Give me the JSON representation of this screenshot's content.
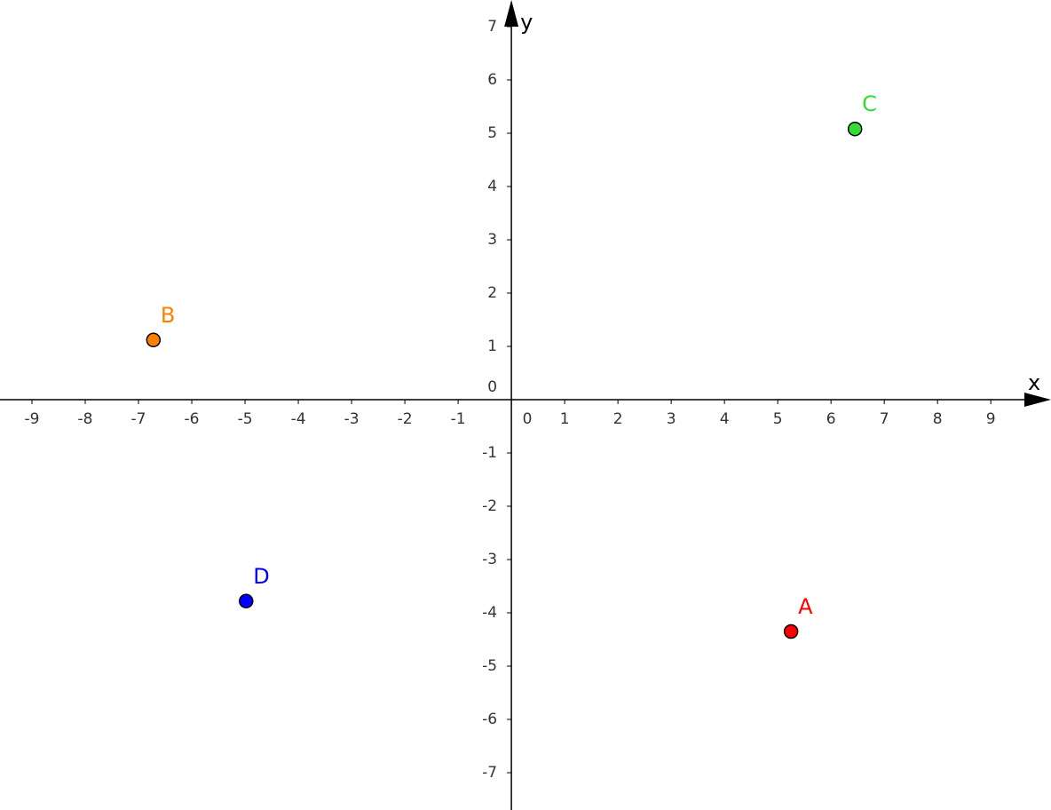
{
  "chart_data": {
    "type": "scatter",
    "xlabel": "x",
    "ylabel": "y",
    "xlim": [
      -9.6,
      10.13
    ],
    "ylim": [
      -7.7,
      7.5
    ],
    "xticks": [
      -9,
      -8,
      -7,
      -6,
      -5,
      -4,
      -3,
      -2,
      -1,
      0,
      1,
      2,
      3,
      4,
      5,
      6,
      7,
      8,
      9
    ],
    "yticks": [
      -7,
      -6,
      -5,
      -4,
      -3,
      -2,
      -1,
      0,
      1,
      2,
      3,
      4,
      5,
      6,
      7
    ],
    "grid": false,
    "series": [
      {
        "name": "A",
        "color": "#ff0000",
        "x": [
          5.25
        ],
        "values": [
          -4.35
        ]
      },
      {
        "name": "B",
        "color": "#ff8000",
        "x": [
          -6.72
        ],
        "values": [
          1.12
        ]
      },
      {
        "name": "C",
        "color": "#33dd33",
        "x": [
          6.45
        ],
        "values": [
          5.08
        ]
      },
      {
        "name": "D",
        "color": "#0000ff",
        "x": [
          -4.98
        ],
        "values": [
          -3.78
        ]
      }
    ]
  }
}
